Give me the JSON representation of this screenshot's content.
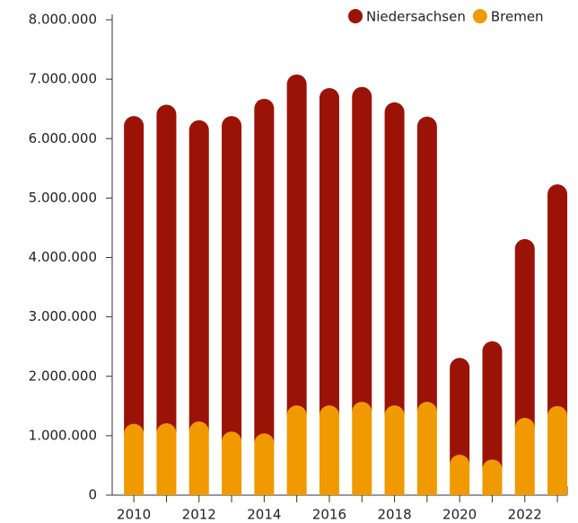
{
  "chart_data": {
    "type": "stacked_bar",
    "categories": [
      "2010",
      null,
      "2012",
      null,
      "2014",
      null,
      "2016",
      null,
      "2018",
      null,
      "2020",
      null,
      "2022",
      null
    ],
    "series": [
      {
        "name": "Niedersachsen",
        "color": "#9b1306",
        "values": [
          5180000,
          5360000,
          5070000,
          5310000,
          5630000,
          5570000,
          5340000,
          5300000,
          5100000,
          4800000,
          1630000,
          1990000,
          3010000,
          3730000
        ]
      },
      {
        "name": "Bremen",
        "color": "#f09a00",
        "values": [
          1200000,
          1210000,
          1240000,
          1070000,
          1040000,
          1510000,
          1510000,
          1570000,
          1510000,
          1570000,
          680000,
          600000,
          1300000,
          1500000
        ]
      }
    ],
    "ylim": [
      0,
      8000000
    ],
    "yticks": [
      0,
      {
        "value": 1000000,
        "label": "1.000.000"
      },
      {
        "value": 2000000,
        "label": "2.000.000"
      },
      {
        "value": 3000000,
        "label": "3.000.000"
      },
      {
        "value": 4000000,
        "label": "4.000.000"
      },
      {
        "value": 5000000,
        "label": "5.000.000"
      },
      {
        "value": 6000000,
        "label": "6.000.000"
      },
      {
        "value": 7000000,
        "label": "7.000.000"
      },
      {
        "value": 8000000,
        "label": "8.000.000"
      }
    ],
    "legend": "top-right"
  }
}
